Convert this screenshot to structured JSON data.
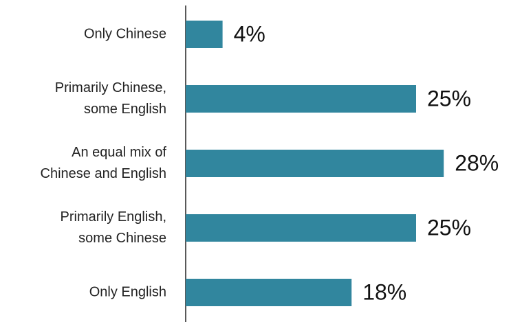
{
  "chart_data": {
    "type": "hbar",
    "categories": [
      "Only Chinese",
      "Primarily Chinese,\nsome English",
      "An equal mix of\nChinese and English",
      "Primarily English,\nsome Chinese",
      "Only English"
    ],
    "values": [
      4,
      25,
      28,
      25,
      18
    ],
    "value_labels": [
      "4%",
      "25%",
      "28%",
      "25%",
      "18%"
    ],
    "color": "#31869e"
  }
}
